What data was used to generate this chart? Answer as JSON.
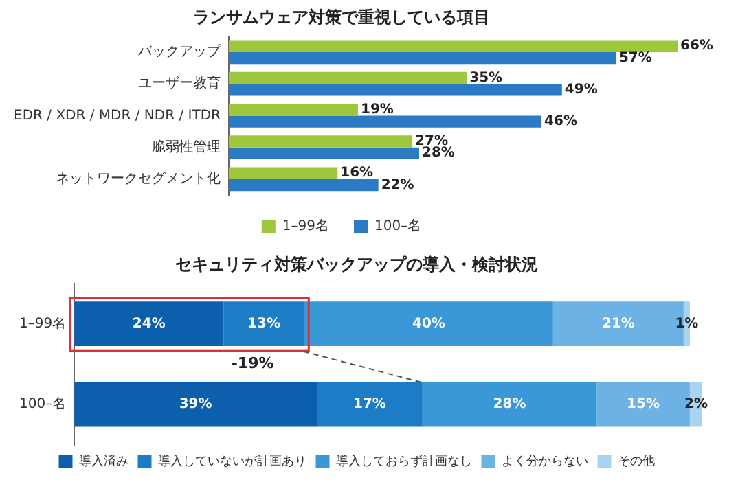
{
  "chart_data": [
    {
      "type": "bar",
      "orientation": "horizontal",
      "title": "ランサムウェア対策で重視している項目",
      "categories": [
        "バックアップ",
        "ユーザー教育",
        "EDR / XDR / MDR / NDR / ITDR",
        "脆弱性管理",
        "ネットワークセグメント化"
      ],
      "series": [
        {
          "name": "1–99名",
          "color": "#9dc83c",
          "values": [
            66,
            35,
            19,
            27,
            16
          ],
          "value_labels": [
            "66%",
            "35%",
            "19%",
            "27%",
            "16%"
          ]
        },
        {
          "name": "100–名",
          "color": "#2a7bc4",
          "values": [
            57,
            49,
            46,
            28,
            22
          ],
          "value_labels": [
            "57%",
            "49%",
            "46%",
            "28%",
            "22%"
          ]
        }
      ],
      "legend": "bottom"
    },
    {
      "type": "bar",
      "orientation": "horizontal",
      "stacked": true,
      "title": "セキュリティ対策バックアップの導入・検討状況",
      "categories": [
        "1–99名",
        "100–名"
      ],
      "series": [
        {
          "name": "導入済み",
          "color": "#0b5fad",
          "values": [
            24,
            39
          ],
          "value_labels": [
            "24%",
            "39%"
          ]
        },
        {
          "name": "導入していないが計画あり",
          "color": "#1c7cc6",
          "values": [
            13,
            17
          ],
          "value_labels": [
            "13%",
            "17%"
          ]
        },
        {
          "name": "導入しておらず計画なし",
          "color": "#3a98d8",
          "values": [
            40,
            28
          ],
          "value_labels": [
            "40%",
            "28%"
          ]
        },
        {
          "name": "よく分からない",
          "color": "#6cb2e4",
          "values": [
            21,
            15
          ],
          "value_labels": [
            "21%",
            "15%"
          ]
        },
        {
          "name": "その他",
          "color": "#a8d4f2",
          "values": [
            1,
            2
          ],
          "value_labels": [
            "1%",
            "2%"
          ]
        }
      ],
      "annotations": [
        "-19%"
      ],
      "legend": "bottom"
    }
  ]
}
